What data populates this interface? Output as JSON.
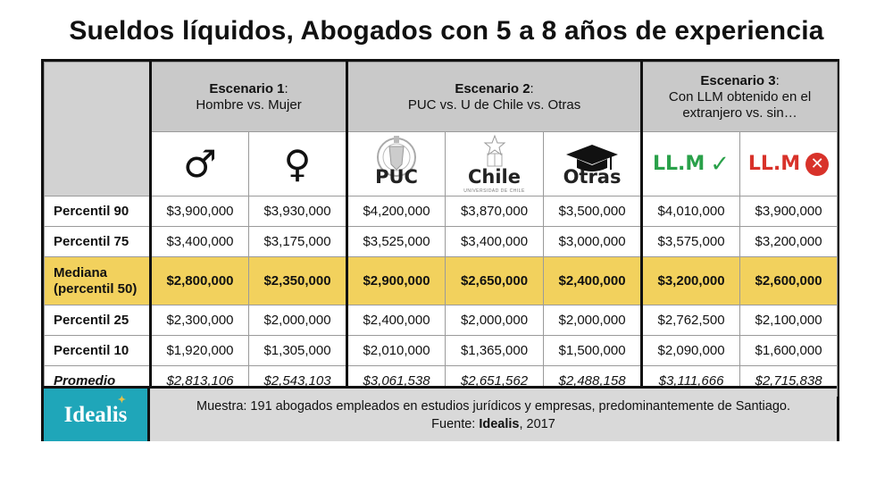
{
  "title": "Sueldos líquidos, Abogados con 5 a 8 años de experiencia",
  "groups": {
    "s1_bold": "Escenario 1",
    "s1_colon": ":",
    "s1_line2": "Hombre vs. Mujer",
    "s2_bold": "Escenario 2",
    "s2_colon": ":",
    "s2_line2": "PUC vs. U de Chile vs. Otras",
    "s3_bold": "Escenario 3",
    "s3_colon": ":",
    "s3_line2": "Con LLM obtenido en el",
    "s3_line3": "extranjero vs. sin…"
  },
  "columns": {
    "male_symbol": "♂",
    "female_symbol": "♀",
    "puc": "PUC",
    "chile": "Chile",
    "chile_sub": "UNIVERSIDAD DE CHILE",
    "otras": "Otras",
    "llm_yes": "LL.M",
    "llm_yes_mark": "✓",
    "llm_no": "LL.M",
    "llm_no_mark": "✕"
  },
  "chart_data": {
    "type": "table",
    "title": "Sueldos líquidos, Abogados con 5 a 8 años de experiencia",
    "columns": [
      "Hombre",
      "Mujer",
      "PUC",
      "Chile",
      "Otras",
      "LL.M ✓",
      "LL.M ✕"
    ],
    "rows": [
      {
        "label": "Percentil 90",
        "values": [
          "$3,900,000",
          "$3,930,000",
          "$4,200,000",
          "$3,870,000",
          "$3,500,000",
          "$4,010,000",
          "$3,900,000"
        ]
      },
      {
        "label": "Percentil 75",
        "values": [
          "$3,400,000",
          "$3,175,000",
          "$3,525,000",
          "$3,400,000",
          "$3,000,000",
          "$3,575,000",
          "$3,200,000"
        ]
      },
      {
        "label": "Mediana",
        "label2": "(percentil 50)",
        "values": [
          "$2,800,000",
          "$2,350,000",
          "$2,900,000",
          "$2,650,000",
          "$2,400,000",
          "$3,200,000",
          "$2,600,000"
        ]
      },
      {
        "label": "Percentil 25",
        "values": [
          "$2,300,000",
          "$2,000,000",
          "$2,400,000",
          "$2,000,000",
          "$2,000,000",
          "$2,762,500",
          "$2,100,000"
        ]
      },
      {
        "label": "Percentil 10",
        "values": [
          "$1,920,000",
          "$1,305,000",
          "$2,010,000",
          "$1,365,000",
          "$1,500,000",
          "$2,090,000",
          "$1,600,000"
        ]
      },
      {
        "label": "Promedio",
        "values": [
          "$2,813,106",
          "$2,543,103",
          "$3,061,538",
          "$2,651,562",
          "$2,488,158",
          "$3,111,666",
          "$2,715,838"
        ]
      }
    ]
  },
  "footer": {
    "logo": "Idealis",
    "note_line1": "Muestra: 191 abogados empleados en estudios jurídicos y empresas, predominantemente de Santiago.",
    "note_line2_prefix": "Fuente: ",
    "note_line2_source": "Idealis",
    "note_line2_suffix": ", 2017"
  },
  "colors": {
    "median_row": "#f2d15d",
    "header_gray": "#c9c9c9",
    "logo_teal": "#1fa6b9",
    "check_green": "#2aa14a",
    "cross_red": "#d8322a"
  }
}
